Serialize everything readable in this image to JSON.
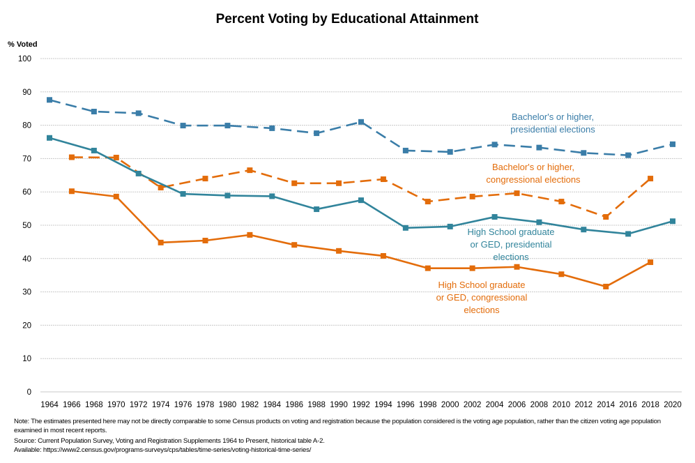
{
  "chart_data": {
    "type": "line",
    "title": "Percent Voting by Educational Attainment",
    "ylabel": "% Voted",
    "xlabel": "",
    "ylim": [
      0,
      100
    ],
    "yticks": [
      0,
      10,
      20,
      30,
      40,
      50,
      60,
      70,
      80,
      90,
      100
    ],
    "x_ticks": [
      1964,
      1966,
      1968,
      1970,
      1972,
      1974,
      1976,
      1978,
      1980,
      1982,
      1984,
      1986,
      1988,
      1990,
      1992,
      1994,
      1996,
      1998,
      2000,
      2002,
      2004,
      2006,
      2008,
      2010,
      2012,
      2014,
      2016,
      2018,
      2020
    ],
    "grid": "horizontal",
    "legend": "none (inline labels)",
    "series": [
      {
        "name": "Bachelor's or higher, presidential elections",
        "label_lines": [
          "Bachelor's or higher,",
          "presidential elections"
        ],
        "color": "#3A7DA8",
        "style": "dashed",
        "x": [
          1964,
          1968,
          1972,
          1976,
          1980,
          1984,
          1988,
          1992,
          1996,
          2000,
          2004,
          2008,
          2012,
          2016,
          2020
        ],
        "values": [
          87.6,
          84.1,
          83.6,
          79.9,
          79.9,
          79.1,
          77.6,
          81.0,
          72.4,
          72.0,
          74.2,
          73.3,
          71.7,
          71.0,
          74.3
        ]
      },
      {
        "name": "Bachelor's or higher, congressional elections",
        "label_lines": [
          "Bachelor's or higher,",
          "congressional elections"
        ],
        "color": "#E36C0A",
        "style": "dashed",
        "x": [
          1966,
          1970,
          1974,
          1978,
          1982,
          1986,
          1990,
          1994,
          1998,
          2002,
          2006,
          2010,
          2014,
          2018
        ],
        "values": [
          70.4,
          70.3,
          61.3,
          64.0,
          66.5,
          62.6,
          62.6,
          63.8,
          57.1,
          58.6,
          59.6,
          57.1,
          52.5,
          64.0
        ]
      },
      {
        "name": "High School graduate or GED, presidential elections",
        "label_lines": [
          "High School graduate",
          "or GED, presidential",
          "elections"
        ],
        "color": "#31849B",
        "style": "solid",
        "x": [
          1964,
          1968,
          1972,
          1976,
          1980,
          1984,
          1988,
          1992,
          1996,
          2000,
          2004,
          2008,
          2012,
          2016,
          2020
        ],
        "values": [
          76.2,
          72.4,
          65.5,
          59.4,
          58.9,
          58.7,
          54.8,
          57.5,
          49.2,
          49.6,
          52.5,
          50.9,
          48.7,
          47.4,
          51.2
        ]
      },
      {
        "name": "High School graduate or GED, congressional elections",
        "label_lines": [
          "High School graduate",
          "or GED, congressional",
          "elections"
        ],
        "color": "#E36C0A",
        "style": "solid",
        "x": [
          1966,
          1970,
          1974,
          1978,
          1982,
          1986,
          1990,
          1994,
          1998,
          2002,
          2006,
          2010,
          2014,
          2018
        ],
        "values": [
          60.2,
          58.6,
          44.8,
          45.4,
          47.1,
          44.1,
          42.3,
          40.8,
          37.1,
          37.1,
          37.5,
          35.3,
          31.6,
          38.9
        ]
      }
    ]
  },
  "notes": {
    "note": "Note: The estimates presented here may not be directly comparable to some Census products on voting and registration because the population considered is the voting age population, rather than the citizen voting age population examined in most recent reports.",
    "source": "Source: Current Population Survey, Voting and Registration Supplements 1964 to Present, historical table A-2.",
    "available": "Available: https://www2.census.gov/programs-surveys/cps/tables/time-series/voting-historical-time-series/"
  }
}
